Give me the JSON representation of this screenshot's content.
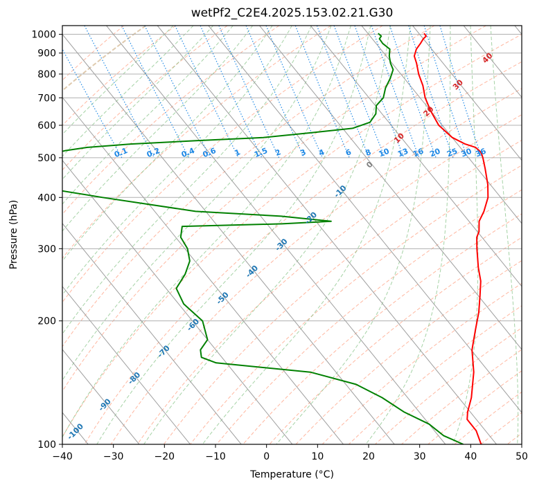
{
  "chart_data": {
    "type": "line",
    "title": "wetPf2_C2E4.2025.153.02.21.G30",
    "xlabel": "Temperature (°C)",
    "ylabel": "Pressure (hPa)",
    "xlim": [
      -40,
      50
    ],
    "ylim": [
      1050,
      100
    ],
    "y_scale": "log",
    "skew": true,
    "grid": true,
    "x_ticks": [
      "−40",
      "−30",
      "−20",
      "−10",
      "0",
      "10",
      "20",
      "30",
      "40",
      "50"
    ],
    "x_tick_values": [
      -40,
      -30,
      -20,
      -10,
      0,
      10,
      20,
      30,
      40,
      50
    ],
    "y_ticks": [
      100,
      200,
      300,
      400,
      500,
      600,
      700,
      800,
      900,
      1000
    ],
    "series": [
      {
        "color": "#ff0000",
        "points": [
          [
            1005,
            31.0
          ],
          [
            990,
            31.0
          ],
          [
            975,
            30.0
          ],
          [
            950,
            28.7
          ],
          [
            920,
            27.0
          ],
          [
            885,
            25.5
          ],
          [
            850,
            24.8
          ],
          [
            800,
            23.5
          ],
          [
            750,
            22.5
          ],
          [
            700,
            21.0
          ],
          [
            650,
            20.0
          ],
          [
            600,
            19.3
          ],
          [
            560,
            20.0
          ],
          [
            540,
            21.5
          ],
          [
            530,
            23.0
          ],
          [
            515,
            23.3
          ],
          [
            500,
            22.8
          ],
          [
            470,
            21.5
          ],
          [
            430,
            19.5
          ],
          [
            400,
            17.5
          ],
          [
            370,
            14.5
          ],
          [
            350,
            12.0
          ],
          [
            330,
            10.3
          ],
          [
            320,
            9.0
          ],
          [
            300,
            7.2
          ],
          [
            270,
            4.5
          ],
          [
            250,
            2.8
          ],
          [
            230,
            0.3
          ],
          [
            210,
            -2.5
          ],
          [
            190,
            -6.0
          ],
          [
            170,
            -9.8
          ],
          [
            150,
            -13.0
          ],
          [
            130,
            -17.5
          ],
          [
            120,
            -20.5
          ],
          [
            115,
            -21.8
          ],
          [
            108,
            -21.8
          ],
          [
            100,
            -23.0
          ]
        ]
      },
      {
        "color": "#008000",
        "points": [
          [
            1005,
            22.0
          ],
          [
            990,
            22.2
          ],
          [
            975,
            21.4
          ],
          [
            950,
            21.3
          ],
          [
            920,
            21.8
          ],
          [
            885,
            20.6
          ],
          [
            850,
            19.7
          ],
          [
            820,
            19.2
          ],
          [
            780,
            17.2
          ],
          [
            740,
            14.8
          ],
          [
            700,
            12.8
          ],
          [
            670,
            10.2
          ],
          [
            640,
            8.8
          ],
          [
            610,
            6.3
          ],
          [
            590,
            2.0
          ],
          [
            575,
            -7.0
          ],
          [
            560,
            -17.0
          ],
          [
            550,
            -31.0
          ],
          [
            540,
            -44.0
          ],
          [
            530,
            -53.0
          ],
          [
            520,
            -58.0
          ],
          [
            505,
            -63.0
          ],
          [
            490,
            -69.0
          ],
          [
            470,
            -73.0
          ],
          [
            450,
            -80.0
          ],
          [
            400,
            -58.0
          ],
          [
            370,
            -42.0
          ],
          [
            360,
            -26.0
          ],
          [
            350,
            -17.0
          ],
          [
            345,
            -27.0
          ],
          [
            340,
            -47.0
          ],
          [
            320,
            -49.0
          ],
          [
            300,
            -49.5
          ],
          [
            280,
            -51.0
          ],
          [
            260,
            -54.0
          ],
          [
            240,
            -58.0
          ],
          [
            220,
            -59.0
          ],
          [
            200,
            -58.0
          ],
          [
            180,
            -60.0
          ],
          [
            170,
            -63.0
          ],
          [
            163,
            -64.0
          ],
          [
            158,
            -62.0
          ],
          [
            150,
            -45.0
          ],
          [
            140,
            -38.0
          ],
          [
            130,
            -35.0
          ],
          [
            120,
            -33.0
          ],
          [
            112,
            -30.0
          ],
          [
            105,
            -29.0
          ],
          [
            100,
            -26.5
          ]
        ]
      }
    ],
    "isotherm_labels": [
      "-100",
      "-90",
      "-80",
      "-70",
      "-60",
      "-50",
      "-40",
      "-30",
      "-20",
      "-10",
      "0",
      "10",
      "20",
      "30",
      "40"
    ],
    "isotherm_label_values": [
      -100,
      -90,
      -80,
      -70,
      -60,
      -50,
      -40,
      -30,
      -20,
      -10,
      0,
      10,
      20,
      30,
      40
    ],
    "mixing_ratio_labels": [
      "0.1",
      "0.2",
      "0.4",
      "0.6",
      "1",
      "1.5",
      "2",
      "3",
      "4",
      "6",
      "8",
      "10",
      "13",
      "16",
      "20",
      "25",
      "30",
      "36"
    ],
    "mixing_ratio_values": [
      0.1,
      0.2,
      0.4,
      0.6,
      1,
      1.5,
      2,
      3,
      4,
      6,
      8,
      10,
      13,
      16,
      20,
      25,
      30,
      36
    ],
    "colors": {
      "temperature": "#ff0000",
      "dewpoint": "#008000",
      "isotherm_line": "#9e9e9e",
      "isotherm_label_cold": "#1f77b4",
      "isotherm_label_zero": "#7f7f7f",
      "isotherm_label_warm": "#d62728",
      "mixing_ratio": "#1e88e5",
      "dry_adiabat": "#ff9f80",
      "moist_adiabat": "#7fbf7f",
      "outer_curve": "#d2b48c"
    }
  }
}
